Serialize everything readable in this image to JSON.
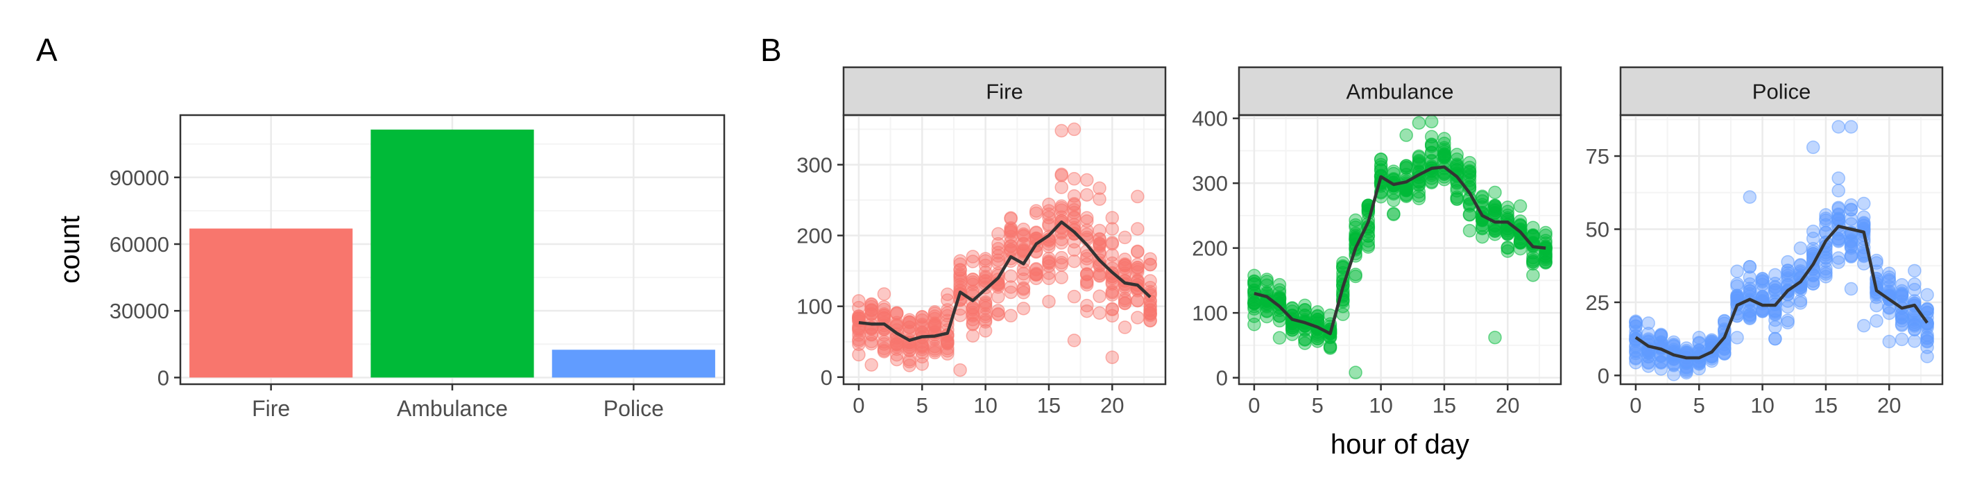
{
  "panel_labels": {
    "a": "A",
    "b": "B"
  },
  "colors": {
    "fire": "#F8766D",
    "ambulance": "#00BA38",
    "police": "#619CFF",
    "strip_fill": "#D9D9D9",
    "mean_line": "#333333"
  },
  "chart_data": [
    {
      "id": "A",
      "type": "bar",
      "categories": [
        "Fire",
        "Ambulance",
        "Police"
      ],
      "values": [
        67000,
        111500,
        12500
      ],
      "colors": [
        "#F8766D",
        "#00BA38",
        "#619CFF"
      ],
      "xlabel": "",
      "ylabel": "count",
      "ylim": [
        -3000,
        118000
      ],
      "yticks": [
        0,
        30000,
        60000,
        90000
      ],
      "ytick_labels": [
        "0",
        "30000",
        "60000",
        "90000"
      ],
      "grid": true
    },
    {
      "id": "B",
      "type": "scatter",
      "xlabel": "hour of day",
      "xlim": [
        -1.2,
        24.2
      ],
      "xticks": [
        0,
        5,
        10,
        15,
        20
      ],
      "xtick_labels": [
        "0",
        "5",
        "10",
        "15",
        "20"
      ],
      "grid": true,
      "facets": [
        {
          "name": "Fire",
          "color": "#F8766D",
          "ylim": [
            -10,
            370
          ],
          "yticks": [
            0,
            100,
            200,
            300
          ],
          "ytick_labels": [
            "0",
            "100",
            "200",
            "300"
          ],
          "hourly_mean": [
            77,
            75,
            75,
            62,
            52,
            57,
            58,
            62,
            120,
            108,
            124,
            140,
            170,
            160,
            188,
            200,
            219,
            205,
            187,
            165,
            148,
            133,
            130,
            113
          ],
          "spread": [
            40,
            40,
            38,
            34,
            32,
            34,
            35,
            40,
            48,
            52,
            56,
            60,
            66,
            68,
            72,
            78,
            82,
            80,
            74,
            68,
            62,
            56,
            52,
            48
          ],
          "outliers": [
            [
              8,
              10
            ],
            [
              16,
              348
            ],
            [
              17,
              350
            ],
            [
              22,
              255
            ],
            [
              20,
              28
            ]
          ]
        },
        {
          "name": "Ambulance",
          "color": "#00BA38",
          "ylim": [
            -10,
            405
          ],
          "yticks": [
            0,
            100,
            200,
            300,
            400
          ],
          "ytick_labels": [
            "0",
            "100",
            "200",
            "300",
            "400"
          ],
          "hourly_mean": [
            130,
            125,
            110,
            90,
            85,
            78,
            68,
            140,
            200,
            240,
            310,
            298,
            302,
            313,
            323,
            325,
            310,
            285,
            250,
            240,
            240,
            225,
            202,
            200
          ],
          "spread": [
            30,
            28,
            26,
            24,
            22,
            22,
            22,
            30,
            40,
            44,
            40,
            40,
            40,
            40,
            42,
            42,
            42,
            40,
            36,
            34,
            32,
            30,
            28,
            28
          ],
          "outliers": [
            [
              8,
              8
            ],
            [
              19,
              62
            ],
            [
              14,
              395
            ],
            [
              13,
              393
            ]
          ]
        },
        {
          "name": "Police",
          "color": "#619CFF",
          "ylim": [
            -3,
            89
          ],
          "yticks": [
            0,
            25,
            50,
            75
          ],
          "ytick_labels": [
            "0",
            "25",
            "50",
            "75"
          ],
          "hourly_mean": [
            13,
            10,
            9,
            7,
            6,
            6,
            8,
            13,
            24,
            26,
            24,
            24,
            29,
            32,
            38,
            46,
            51,
            50,
            49,
            29,
            26,
            23,
            24,
            18
          ],
          "spread": [
            7,
            6,
            6,
            5,
            4,
            4,
            5,
            6,
            9,
            10,
            10,
            10,
            11,
            12,
            12,
            13,
            14,
            13,
            12,
            10,
            9,
            9,
            9,
            8
          ],
          "outliers": [
            [
              9,
              61
            ],
            [
              16,
              85
            ],
            [
              17,
              85
            ],
            [
              14,
              78
            ],
            [
              18,
              17
            ]
          ]
        }
      ]
    }
  ]
}
